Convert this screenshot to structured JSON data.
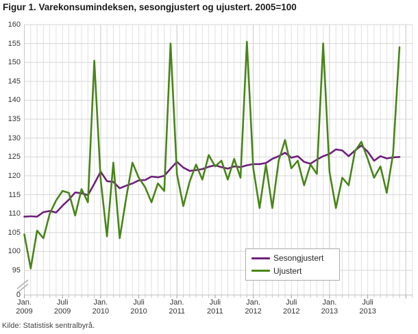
{
  "title": "Figur 1. Varekonsumindeksen, sesongjustert og ujustert. 2005=100",
  "source": "Kilde: Statistisk sentralbyrå.",
  "legend": {
    "items": [
      {
        "label": "Sesongjustert",
        "color": "#6e1e7c"
      },
      {
        "label": "Ujustert",
        "color": "#478517"
      }
    ]
  },
  "chart_data": {
    "type": "line",
    "title": "Figur 1. Varekonsumindeksen, sesongjustert og ujustert. 2005=100",
    "xlabel": "",
    "ylabel": "",
    "ylim": [
      95,
      160
    ],
    "y_axis_break_between": [
      0,
      95
    ],
    "y_ticks": [
      0,
      95,
      100,
      105,
      110,
      115,
      120,
      125,
      130,
      135,
      140,
      145,
      150,
      155,
      160
    ],
    "grid": "monthly vertical and 5-unit horizontal, light gray",
    "legend_position": "inside lower-right box",
    "x_start": "2009-01",
    "x_end": "2013-12",
    "x_tick_labels": [
      {
        "month": "Jan.",
        "year": "2009"
      },
      {
        "month": "Juli",
        "year": "2009"
      },
      {
        "month": "Jan.",
        "year": "2010"
      },
      {
        "month": "Juli",
        "year": "2010"
      },
      {
        "month": "Jan.",
        "year": "2011"
      },
      {
        "month": "Juli",
        "year": "2011"
      },
      {
        "month": "Jan.",
        "year": "2012"
      },
      {
        "month": "Juli",
        "year": "2012"
      },
      {
        "month": "Jan.",
        "year": "2013"
      },
      {
        "month": "Juli",
        "year": "2013"
      }
    ],
    "series": [
      {
        "name": "Sesongjustert",
        "color": "#6e1e7c",
        "values": [
          109.2,
          109.3,
          109.2,
          110.4,
          110.7,
          110.3,
          112.1,
          113.7,
          115.6,
          115.4,
          114.9,
          117.9,
          121.1,
          118.6,
          118.4,
          116.7,
          117.4,
          118.0,
          118.8,
          118.9,
          119.8,
          119.6,
          120.0,
          121.9,
          123.7,
          122.2,
          121.3,
          121.5,
          121.8,
          122.4,
          122.8,
          122.3,
          121.9,
          122.5,
          122.3,
          122.8,
          123.1,
          123.1,
          123.4,
          124.5,
          125.2,
          126.1,
          124.8,
          125.2,
          123.7,
          123.2,
          124.3,
          125.2,
          125.8,
          127.0,
          126.7,
          125.2,
          126.7,
          128.0,
          126.4,
          124.0,
          125.2,
          124.6,
          124.9,
          125.0
        ]
      },
      {
        "name": "Ujustert",
        "color": "#478517",
        "values": [
          104.5,
          95.5,
          105.5,
          103.5,
          110.0,
          113.5,
          116.0,
          115.5,
          109.5,
          116.5,
          113.0,
          150.5,
          119.0,
          104.0,
          123.5,
          103.5,
          114.0,
          123.5,
          119.5,
          117.0,
          113.0,
          118.0,
          116.0,
          155.0,
          120.5,
          112.0,
          118.5,
          123.0,
          119.0,
          125.5,
          122.5,
          124.0,
          119.0,
          124.5,
          119.5,
          155.5,
          122.0,
          111.5,
          123.0,
          111.5,
          124.0,
          129.5,
          122.0,
          124.0,
          117.5,
          123.0,
          120.5,
          155.0,
          121.0,
          111.5,
          119.5,
          117.5,
          126.5,
          129.0,
          124.5,
          119.5,
          122.5,
          115.5,
          126.0,
          154.0
        ]
      }
    ]
  }
}
